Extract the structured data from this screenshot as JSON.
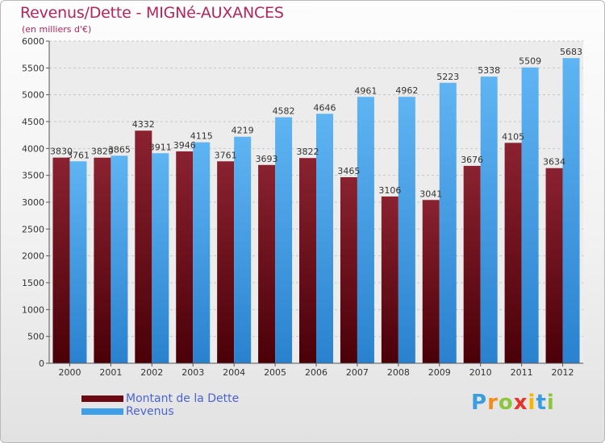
{
  "title": "Revenus/Dette - MIGNé-AUXANCES",
  "subtitle": "(en milliers d'€)",
  "colors": {
    "dette": "#6b0a12",
    "revenus": "#3f9ee8",
    "title": "#b5245a",
    "legend_text": "#4a63d6"
  },
  "legend": [
    {
      "label": "Montant de la Dette",
      "color": "#6b0a12"
    },
    {
      "label": "Revenus",
      "color": "#3f9ee8"
    }
  ],
  "logo": {
    "text": "Proxiti",
    "letters": [
      {
        "char": "P",
        "color": "#3a9de0"
      },
      {
        "char": "r",
        "color": "#f28c1e"
      },
      {
        "char": "o",
        "color": "#8cc63f"
      },
      {
        "char": "x",
        "color": "#e5332a"
      },
      {
        "char": "i",
        "color": "#f7b500"
      },
      {
        "char": "t",
        "color": "#3a9de0"
      },
      {
        "char": "i",
        "color": "#8cc63f"
      }
    ]
  },
  "chart_data": {
    "type": "bar",
    "title": "Revenus/Dette - MIGNé-AUXANCES",
    "subtitle": "(en milliers d'€)",
    "categories": [
      "2000",
      "2001",
      "2002",
      "2003",
      "2004",
      "2005",
      "2006",
      "2007",
      "2008",
      "2009",
      "2010",
      "2011",
      "2012"
    ],
    "series": [
      {
        "name": "Montant de la Dette",
        "values": [
          3830,
          3829,
          4332,
          3946,
          3761,
          3693,
          3822,
          3465,
          3106,
          3041,
          3676,
          4105,
          3634
        ]
      },
      {
        "name": "Revenus",
        "values": [
          3761,
          3865,
          3911,
          4115,
          4219,
          4582,
          4646,
          4961,
          4962,
          5223,
          5338,
          5509,
          5683
        ]
      }
    ],
    "ylim": [
      0,
      6000
    ],
    "yticks": [
      0,
      500,
      1000,
      1500,
      2000,
      2500,
      3000,
      3500,
      4000,
      4500,
      5000,
      5500,
      6000
    ],
    "grid": true,
    "legend_position": "bottom-left"
  }
}
